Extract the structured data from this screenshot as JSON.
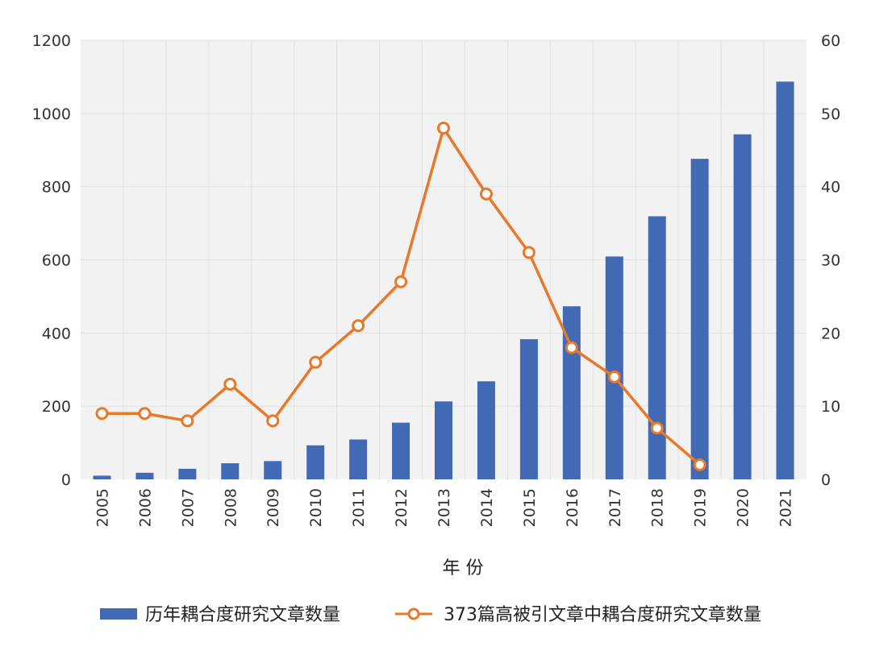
{
  "chart_data": {
    "type": "bar",
    "categories": [
      "2005",
      "2006",
      "2007",
      "2008",
      "2009",
      "2010",
      "2011",
      "2012",
      "2013",
      "2014",
      "2015",
      "2016",
      "2017",
      "2018",
      "2019",
      "2020",
      "2021"
    ],
    "xlabel": "年 份",
    "y_left": {
      "ylim": [
        0,
        1200
      ],
      "ticks": [
        0,
        200,
        400,
        600,
        800,
        1000,
        1200
      ]
    },
    "y_right": {
      "ylim": [
        0,
        60
      ],
      "ticks": [
        0,
        10,
        20,
        30,
        40,
        50,
        60
      ]
    },
    "grid": true,
    "legend_position": "bottom",
    "series": [
      {
        "name": "历年耦合度研究文章数量",
        "type": "bar",
        "axis": "left",
        "color": "#4169b4",
        "values": [
          10,
          18,
          29,
          44,
          50,
          93,
          109,
          155,
          213,
          268,
          383,
          473,
          609,
          719,
          876,
          943,
          1087
        ]
      },
      {
        "name": "373篇高被引文章中耦合度研究文章数量",
        "type": "line",
        "axis": "right",
        "color": "#e8782a",
        "marker": "open-circle",
        "values": [
          9,
          9,
          8,
          13,
          8,
          16,
          21,
          27,
          48,
          39,
          31,
          18,
          14,
          7,
          2,
          null,
          null
        ]
      }
    ]
  }
}
